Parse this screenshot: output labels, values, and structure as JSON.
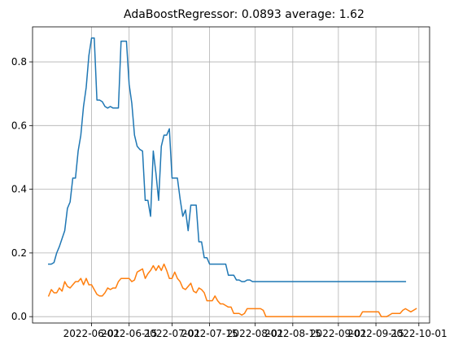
{
  "chart_data": {
    "type": "line",
    "title": "AdaBoostRegressor: 0.0893 average: 1.62",
    "xlabel": "",
    "ylabel": "",
    "grid": true,
    "x_start": "2022-05-16",
    "x_step_days": 1,
    "xlim": [
      "2022-05-10",
      "2022-10-05"
    ],
    "ylim": [
      -0.02,
      0.91
    ],
    "x_ticks": [
      {
        "date": "2022-06-01",
        "label": "2022-06-01"
      },
      {
        "date": "2022-06-15",
        "label": "2022-06-15"
      },
      {
        "date": "2022-07-01",
        "label": "2022-07-01"
      },
      {
        "date": "2022-07-15",
        "label": "2022-07-15"
      },
      {
        "date": "2022-08-01",
        "label": "2022-08-01"
      },
      {
        "date": "2022-08-15",
        "label": "2022-08-15"
      },
      {
        "date": "2022-09-01",
        "label": "2022-09-01"
      },
      {
        "date": "2022-09-15",
        "label": "2022-09-15"
      },
      {
        "date": "2022-10-01",
        "label": "2022-10-01"
      }
    ],
    "y_ticks": [
      {
        "value": 0.0,
        "label": "0.0"
      },
      {
        "value": 0.2,
        "label": "0.2"
      },
      {
        "value": 0.4,
        "label": "0.4"
      },
      {
        "value": 0.6,
        "label": "0.6"
      },
      {
        "value": 0.8,
        "label": "0.8"
      }
    ],
    "series": [
      {
        "color": "#1f77b4",
        "values": [
          0.165,
          0.165,
          0.17,
          0.2,
          0.22,
          0.245,
          0.27,
          0.34,
          0.36,
          0.435,
          0.435,
          0.52,
          0.57,
          0.66,
          0.72,
          0.82,
          0.875,
          0.875,
          0.68,
          0.68,
          0.675,
          0.66,
          0.655,
          0.66,
          0.655,
          0.655,
          0.655,
          0.865,
          0.865,
          0.865,
          0.73,
          0.67,
          0.57,
          0.535,
          0.525,
          0.52,
          0.365,
          0.365,
          0.315,
          0.52,
          0.45,
          0.365,
          0.535,
          0.57,
          0.57,
          0.59,
          0.435,
          0.435,
          0.435,
          0.37,
          0.315,
          0.335,
          0.27,
          0.35,
          0.35,
          0.35,
          0.235,
          0.235,
          0.185,
          0.185,
          0.165,
          0.165,
          0.165,
          0.165,
          0.165,
          0.165,
          0.165,
          0.13,
          0.13,
          0.13,
          0.115,
          0.115,
          0.11,
          0.11,
          0.115,
          0.115,
          0.11,
          0.11,
          0.11,
          0.11,
          0.11,
          0.11,
          0.11,
          0.11,
          0.11,
          0.11,
          0.11,
          0.11,
          0.11,
          0.11,
          0.11,
          0.11,
          0.11,
          0.11,
          0.11,
          0.11,
          0.11,
          0.11,
          0.11,
          0.11,
          0.11,
          0.11,
          0.11,
          0.11,
          0.11,
          0.11,
          0.11,
          0.11,
          0.11,
          0.11,
          0.11,
          0.11,
          0.11,
          0.11,
          0.11,
          0.11,
          0.11,
          0.11,
          0.11,
          0.11,
          0.11,
          0.11,
          0.11,
          0.11,
          0.11,
          0.11,
          0.11,
          0.11,
          0.11,
          0.11,
          0.11,
          0.11,
          0.11,
          0.11
        ]
      },
      {
        "color": "#ff7f0e",
        "values": [
          0.065,
          0.085,
          0.075,
          0.075,
          0.09,
          0.08,
          0.11,
          0.095,
          0.09,
          0.1,
          0.11,
          0.11,
          0.12,
          0.1,
          0.12,
          0.1,
          0.1,
          0.085,
          0.07,
          0.065,
          0.065,
          0.075,
          0.09,
          0.085,
          0.09,
          0.09,
          0.11,
          0.12,
          0.12,
          0.12,
          0.12,
          0.11,
          0.115,
          0.14,
          0.145,
          0.15,
          0.12,
          0.135,
          0.145,
          0.16,
          0.145,
          0.16,
          0.145,
          0.165,
          0.145,
          0.12,
          0.12,
          0.14,
          0.12,
          0.11,
          0.09,
          0.085,
          0.095,
          0.105,
          0.08,
          0.075,
          0.09,
          0.085,
          0.075,
          0.05,
          0.05,
          0.05,
          0.065,
          0.05,
          0.04,
          0.04,
          0.035,
          0.03,
          0.03,
          0.01,
          0.01,
          0.01,
          0.005,
          0.01,
          0.025,
          0.025,
          0.025,
          0.025,
          0.025,
          0.025,
          0.02,
          0.0,
          0.0,
          0.0,
          0.0,
          0.0,
          0.0,
          0.0,
          0.0,
          0.0,
          0.0,
          0.0,
          0.0,
          0.0,
          0.0,
          0.0,
          0.0,
          0.0,
          0.0,
          0.0,
          0.0,
          0.0,
          0.0,
          0.0,
          0.0,
          0.0,
          0.0,
          0.0,
          0.0,
          0.0,
          0.0,
          0.0,
          0.0,
          0.0,
          0.0,
          0.0,
          0.0,
          0.015,
          0.015,
          0.015,
          0.015,
          0.015,
          0.015,
          0.015,
          0.0,
          0.0,
          0.0,
          0.005,
          0.01,
          0.01,
          0.01,
          0.01,
          0.02,
          0.025,
          0.02,
          0.015,
          0.02,
          0.025
        ]
      }
    ]
  }
}
